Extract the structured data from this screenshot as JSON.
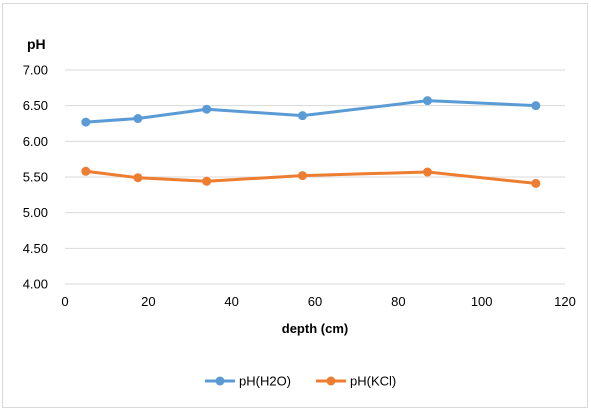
{
  "chart_data": {
    "type": "line",
    "xlabel": "depth (cm)",
    "ylabel": "pH",
    "xlim": [
      0,
      120
    ],
    "ylim": [
      4.0,
      7.0
    ],
    "x_ticks": [
      "0",
      "20",
      "40",
      "60",
      "80",
      "100",
      "120"
    ],
    "y_ticks": [
      "4.00",
      "4.50",
      "5.00",
      "5.50",
      "6.00",
      "6.50",
      "7.00"
    ],
    "grid": "horizontal",
    "legend_position": "bottom",
    "series": [
      {
        "name": "pH(H2O)",
        "color": "#5b9bd5",
        "x": [
          5,
          17.5,
          34,
          57,
          87,
          113
        ],
        "y": [
          6.27,
          6.32,
          6.45,
          6.36,
          6.57,
          6.5
        ]
      },
      {
        "name": "pH(KCl)",
        "color": "#ed7d31",
        "x": [
          5,
          17.5,
          34,
          57,
          87,
          113
        ],
        "y": [
          5.58,
          5.49,
          5.44,
          5.52,
          5.57,
          5.41
        ]
      }
    ]
  }
}
